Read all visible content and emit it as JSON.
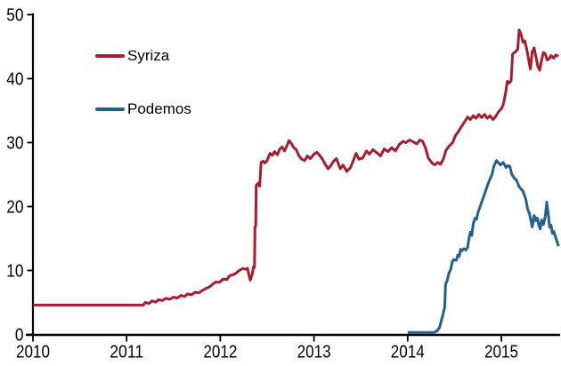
{
  "chart_data": {
    "type": "line",
    "grid": false,
    "background": "#FFFFFF",
    "text_color": "#000000",
    "axis_color": "#000000",
    "legend_position": "inside-top-left",
    "x_axis": {
      "ticks": [
        2010,
        2011,
        2012,
        2013,
        2014,
        2015
      ],
      "range": [
        2010,
        2015.65
      ]
    },
    "y_axis": {
      "ticks": [
        0,
        10,
        20,
        30,
        40,
        50
      ],
      "range": [
        0,
        50
      ]
    },
    "series": [
      {
        "name": "Syriza",
        "color": "#A81C30",
        "points": [
          [
            2010.0,
            4.6
          ],
          [
            2010.25,
            4.6
          ],
          [
            2010.5,
            4.6
          ],
          [
            2010.75,
            4.6
          ],
          [
            2011.0,
            4.6
          ],
          [
            2011.18,
            4.6
          ],
          [
            2011.2,
            5.0
          ],
          [
            2011.24,
            4.85
          ],
          [
            2011.27,
            5.25
          ],
          [
            2011.31,
            5.05
          ],
          [
            2011.34,
            5.45
          ],
          [
            2011.38,
            5.3
          ],
          [
            2011.42,
            5.65
          ],
          [
            2011.46,
            5.5
          ],
          [
            2011.5,
            5.85
          ],
          [
            2011.54,
            5.7
          ],
          [
            2011.58,
            6.1
          ],
          [
            2011.62,
            5.95
          ],
          [
            2011.65,
            6.35
          ],
          [
            2011.69,
            6.2
          ],
          [
            2011.73,
            6.6
          ],
          [
            2011.77,
            6.5
          ],
          [
            2011.81,
            6.9
          ],
          [
            2011.84,
            7.15
          ],
          [
            2011.88,
            7.4
          ],
          [
            2011.91,
            7.75
          ],
          [
            2011.95,
            8.2
          ],
          [
            2011.99,
            8.15
          ],
          [
            2012.03,
            8.65
          ],
          [
            2012.07,
            8.6
          ],
          [
            2012.1,
            9.2
          ],
          [
            2012.14,
            9.35
          ],
          [
            2012.17,
            9.6
          ],
          [
            2012.21,
            10.1
          ],
          [
            2012.24,
            10.3
          ],
          [
            2012.27,
            10.2
          ],
          [
            2012.29,
            10.35
          ],
          [
            2012.31,
            9.0
          ],
          [
            2012.32,
            8.5
          ],
          [
            2012.34,
            9.4
          ],
          [
            2012.355,
            10.6
          ],
          [
            2012.365,
            10.5
          ],
          [
            2012.37,
            16.8
          ],
          [
            2012.378,
            17.0
          ],
          [
            2012.383,
            23.3
          ],
          [
            2012.4,
            23.6
          ],
          [
            2012.42,
            23.2
          ],
          [
            2012.435,
            26.9
          ],
          [
            2012.455,
            27.1
          ],
          [
            2012.475,
            26.8
          ],
          [
            2012.5,
            27.2
          ],
          [
            2012.53,
            28.3
          ],
          [
            2012.555,
            28.0
          ],
          [
            2012.58,
            28.6
          ],
          [
            2012.61,
            28.1
          ],
          [
            2012.635,
            29.0
          ],
          [
            2012.66,
            29.3
          ],
          [
            2012.685,
            28.7
          ],
          [
            2012.71,
            29.5
          ],
          [
            2012.735,
            30.3
          ],
          [
            2012.76,
            29.8
          ],
          [
            2012.785,
            29.2
          ],
          [
            2012.81,
            28.9
          ],
          [
            2012.84,
            27.9
          ],
          [
            2012.87,
            27.4
          ],
          [
            2012.9,
            27.2
          ],
          [
            2012.93,
            27.9
          ],
          [
            2012.96,
            27.5
          ],
          [
            2013.0,
            28.2
          ],
          [
            2013.03,
            28.5
          ],
          [
            2013.06,
            28.0
          ],
          [
            2013.09,
            27.4
          ],
          [
            2013.12,
            26.6
          ],
          [
            2013.15,
            25.9
          ],
          [
            2013.18,
            26.4
          ],
          [
            2013.21,
            27.1
          ],
          [
            2013.24,
            27.5
          ],
          [
            2013.28,
            25.9
          ],
          [
            2013.31,
            26.5
          ],
          [
            2013.35,
            25.5
          ],
          [
            2013.39,
            26.1
          ],
          [
            2013.42,
            27.2
          ],
          [
            2013.45,
            28.3
          ],
          [
            2013.48,
            27.4
          ],
          [
            2013.52,
            27.6
          ],
          [
            2013.56,
            28.7
          ],
          [
            2013.59,
            28.2
          ],
          [
            2013.63,
            28.9
          ],
          [
            2013.67,
            28.4
          ],
          [
            2013.71,
            27.9
          ],
          [
            2013.75,
            29.0
          ],
          [
            2013.79,
            28.6
          ],
          [
            2013.83,
            29.2
          ],
          [
            2013.87,
            28.7
          ],
          [
            2013.91,
            29.7
          ],
          [
            2013.95,
            30.2
          ],
          [
            2013.98,
            30.0
          ],
          [
            2014.02,
            30.4
          ],
          [
            2014.06,
            30.1
          ],
          [
            2014.1,
            29.8
          ],
          [
            2014.13,
            30.4
          ],
          [
            2014.16,
            30.2
          ],
          [
            2014.19,
            29.2
          ],
          [
            2014.22,
            27.6
          ],
          [
            2014.26,
            26.8
          ],
          [
            2014.29,
            26.5
          ],
          [
            2014.32,
            26.9
          ],
          [
            2014.35,
            26.6
          ],
          [
            2014.38,
            27.4
          ],
          [
            2014.41,
            28.8
          ],
          [
            2014.44,
            29.4
          ],
          [
            2014.48,
            30.0
          ],
          [
            2014.51,
            31.1
          ],
          [
            2014.54,
            31.7
          ],
          [
            2014.57,
            32.4
          ],
          [
            2014.61,
            33.3
          ],
          [
            2014.64,
            34.0
          ],
          [
            2014.67,
            33.6
          ],
          [
            2014.7,
            34.2
          ],
          [
            2014.73,
            33.8
          ],
          [
            2014.76,
            34.4
          ],
          [
            2014.79,
            33.9
          ],
          [
            2014.82,
            34.4
          ],
          [
            2014.85,
            33.8
          ],
          [
            2014.88,
            34.2
          ],
          [
            2014.91,
            33.6
          ],
          [
            2014.94,
            34.1
          ],
          [
            2014.97,
            34.8
          ],
          [
            2015.0,
            35.3
          ],
          [
            2015.02,
            35.9
          ],
          [
            2015.045,
            37.7
          ],
          [
            2015.065,
            39.6
          ],
          [
            2015.085,
            39.3
          ],
          [
            2015.105,
            39.7
          ],
          [
            2015.12,
            43.8
          ],
          [
            2015.14,
            44.1
          ],
          [
            2015.16,
            44.3
          ],
          [
            2015.175,
            44.6
          ],
          [
            2015.19,
            47.6
          ],
          [
            2015.21,
            47.0
          ],
          [
            2015.23,
            45.7
          ],
          [
            2015.25,
            45.9
          ],
          [
            2015.27,
            44.7
          ],
          [
            2015.29,
            43.1
          ],
          [
            2015.31,
            41.5
          ],
          [
            2015.33,
            44.2
          ],
          [
            2015.35,
            44.8
          ],
          [
            2015.37,
            43.4
          ],
          [
            2015.39,
            41.9
          ],
          [
            2015.41,
            41.3
          ],
          [
            2015.43,
            42.9
          ],
          [
            2015.45,
            44.1
          ],
          [
            2015.47,
            43.8
          ],
          [
            2015.49,
            42.9
          ],
          [
            2015.51,
            43.1
          ],
          [
            2015.53,
            43.6
          ],
          [
            2015.56,
            43.2
          ],
          [
            2015.58,
            43.7
          ],
          [
            2015.61,
            43.5
          ]
        ]
      },
      {
        "name": "Podemos",
        "color": "#21618E",
        "points": [
          [
            2014.0,
            0.3
          ],
          [
            2014.1,
            0.3
          ],
          [
            2014.2,
            0.3
          ],
          [
            2014.28,
            0.3
          ],
          [
            2014.31,
            0.5
          ],
          [
            2014.34,
            1.1
          ],
          [
            2014.36,
            2.2
          ],
          [
            2014.38,
            3.3
          ],
          [
            2014.395,
            4.3
          ],
          [
            2014.405,
            7.9
          ],
          [
            2014.42,
            8.3
          ],
          [
            2014.44,
            9.6
          ],
          [
            2014.46,
            10.2
          ],
          [
            2014.475,
            11.3
          ],
          [
            2014.49,
            11.7
          ],
          [
            2014.52,
            11.6
          ],
          [
            2014.535,
            12.4
          ],
          [
            2014.55,
            12.2
          ],
          [
            2014.565,
            13.3
          ],
          [
            2014.58,
            13.1
          ],
          [
            2014.6,
            13.4
          ],
          [
            2014.62,
            13.2
          ],
          [
            2014.64,
            13.6
          ],
          [
            2014.655,
            15.0
          ],
          [
            2014.67,
            16.0
          ],
          [
            2014.685,
            15.5
          ],
          [
            2014.7,
            17.3
          ],
          [
            2014.72,
            18.2
          ],
          [
            2014.735,
            18.0
          ],
          [
            2014.75,
            19.0
          ],
          [
            2014.78,
            20.3
          ],
          [
            2014.81,
            21.5
          ],
          [
            2014.84,
            22.8
          ],
          [
            2014.87,
            24.0
          ],
          [
            2014.9,
            25.0
          ],
          [
            2014.92,
            26.3
          ],
          [
            2014.95,
            27.2
          ],
          [
            2014.99,
            26.5
          ],
          [
            2015.02,
            26.9
          ],
          [
            2015.05,
            26.1
          ],
          [
            2015.07,
            26.4
          ],
          [
            2015.09,
            26.3
          ],
          [
            2015.11,
            25.1
          ],
          [
            2015.14,
            24.4
          ],
          [
            2015.16,
            24.2
          ],
          [
            2015.19,
            23.1
          ],
          [
            2015.23,
            22.4
          ],
          [
            2015.26,
            21.2
          ],
          [
            2015.28,
            19.6
          ],
          [
            2015.3,
            18.9
          ],
          [
            2015.315,
            17.9
          ],
          [
            2015.33,
            16.8
          ],
          [
            2015.35,
            18.6
          ],
          [
            2015.37,
            17.8
          ],
          [
            2015.385,
            18.2
          ],
          [
            2015.4,
            17.1
          ],
          [
            2015.415,
            16.5
          ],
          [
            2015.43,
            17.9
          ],
          [
            2015.45,
            17.2
          ],
          [
            2015.47,
            18.5
          ],
          [
            2015.485,
            20.7
          ],
          [
            2015.5,
            18.9
          ],
          [
            2015.515,
            16.8
          ],
          [
            2015.53,
            17.1
          ],
          [
            2015.545,
            15.8
          ],
          [
            2015.56,
            16.1
          ],
          [
            2015.575,
            15.4
          ],
          [
            2015.59,
            14.7
          ],
          [
            2015.61,
            13.8
          ]
        ]
      }
    ]
  }
}
